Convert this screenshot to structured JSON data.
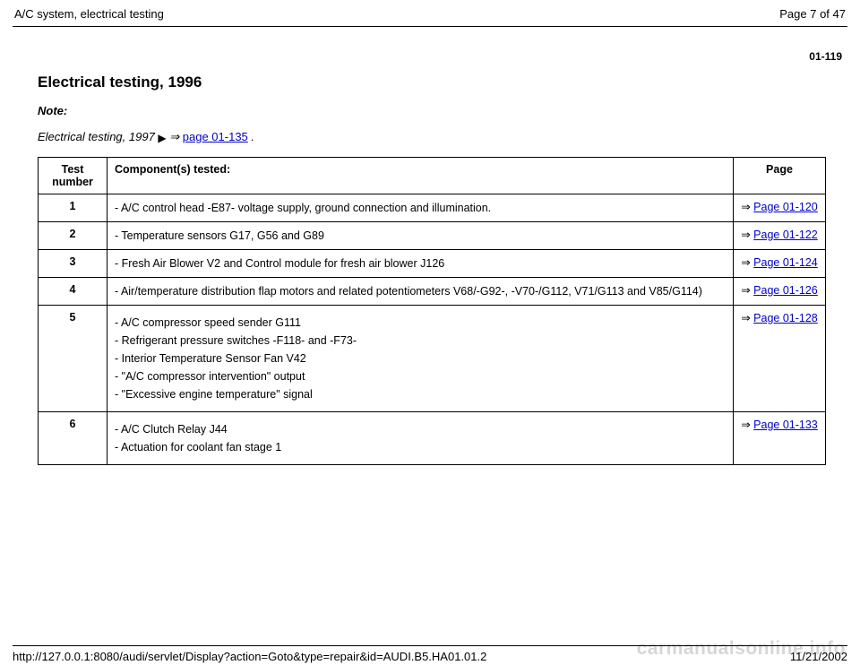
{
  "header": {
    "left": "A/C system, electrical testing",
    "right": "Page 7 of 47"
  },
  "section_number": "01-119",
  "title": "Electrical testing, 1996",
  "note_label": "Note:",
  "note_prefix": "Electrical testing, 1997 ",
  "note_link_symbol": " ⇒ ",
  "note_link_text": "page 01-135",
  "note_suffix": " .",
  "table": {
    "headers": {
      "num": "Test number",
      "comp": "Component(s) tested:",
      "page": "Page"
    },
    "rows": [
      {
        "num": "1",
        "items": [
          "- A/C control head -E87- voltage supply, ground connection and illumination."
        ],
        "link": "Page 01-120"
      },
      {
        "num": "2",
        "items": [
          "- Temperature sensors G17, G56 and G89"
        ],
        "link": "Page 01-122"
      },
      {
        "num": "3",
        "items": [
          "- Fresh Air Blower V2 and Control module for fresh air blower J126"
        ],
        "link": "Page 01-124"
      },
      {
        "num": "4",
        "items": [
          "- Air/temperature distribution flap motors and related potentiometers V68/-G92-, -V70-/G112, V71/G113 and V85/G114)"
        ],
        "link": "Page 01-126"
      },
      {
        "num": "5",
        "items": [
          "- A/C compressor speed sender G111",
          "- Refrigerant pressure switches -F118- and -F73-",
          "- Interior Temperature Sensor Fan V42",
          "- \"A/C compressor intervention\" output",
          "- \"Excessive engine temperature\" signal"
        ],
        "link": "Page 01-128"
      },
      {
        "num": "6",
        "items": [
          "- A/C Clutch Relay J44",
          "- Actuation for coolant fan stage 1"
        ],
        "link": "Page 01-133"
      }
    ]
  },
  "footer": {
    "url": "http://127.0.0.1:8080/audi/servlet/Display?action=Goto&type=repair&id=AUDI.B5.HA01.01.2",
    "date": "11/21/2002"
  },
  "watermark": "carmanualsonline.info",
  "implies_symbol": "⇒",
  "play_symbol": "▶"
}
